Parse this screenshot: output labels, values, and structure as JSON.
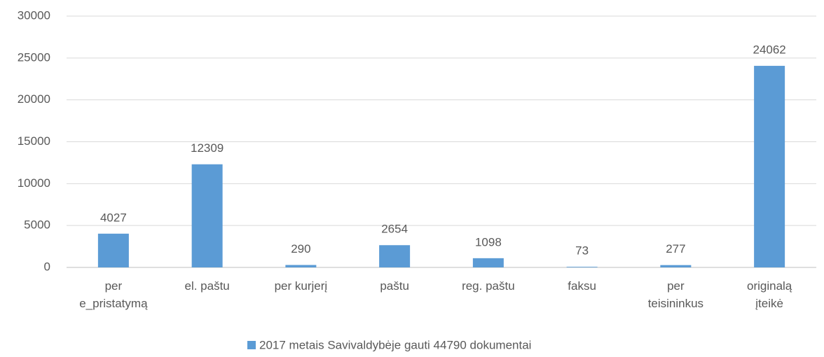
{
  "chart_data": {
    "type": "bar",
    "categories": [
      "per\ne_pristatymą",
      "el. paštu",
      "per kurjerį",
      "paštu",
      "reg. paštu",
      "faksu",
      "per\nteisininkus",
      "originalą\nįteikė"
    ],
    "series": [
      {
        "name": "2017 metais Savivaldybėje gauti 44790 dokumentai",
        "color": "#5b9bd5",
        "values": [
          4027,
          12309,
          290,
          2654,
          1098,
          73,
          277,
          24062
        ]
      }
    ],
    "ylim": [
      0,
      30000
    ],
    "yticks": [
      0,
      5000,
      10000,
      15000,
      20000,
      25000,
      30000
    ],
    "grid": true,
    "legend": "bottom"
  }
}
